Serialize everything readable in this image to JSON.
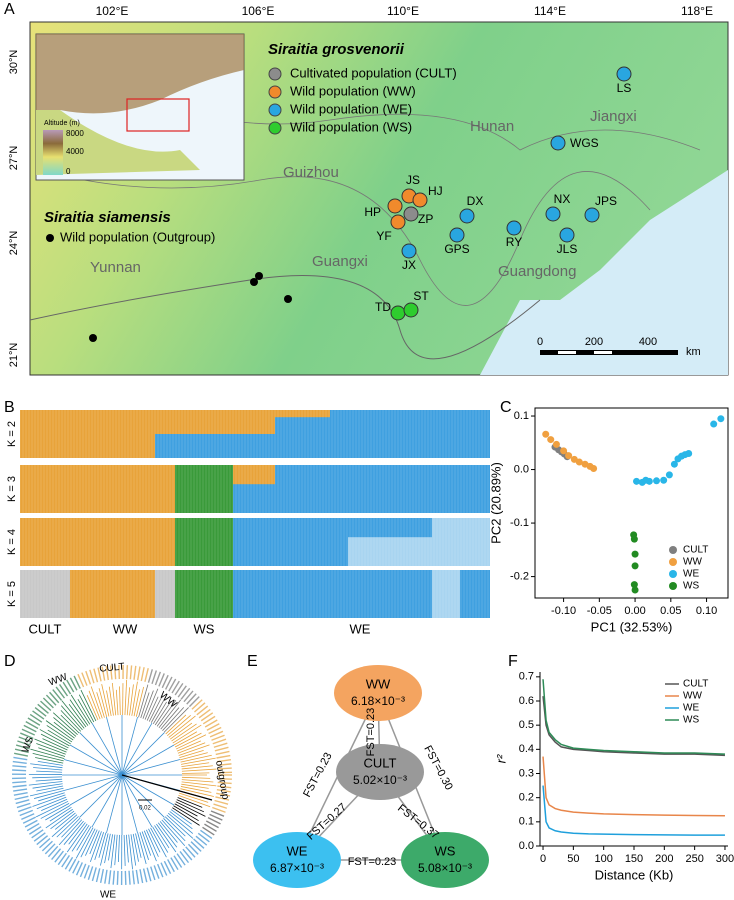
{
  "panels": [
    "A",
    "B",
    "C",
    "D",
    "E",
    "F"
  ],
  "map": {
    "lon_labels": [
      "102°E",
      "106°E",
      "110°E",
      "114°E",
      "118°E"
    ],
    "lat_labels": [
      "30°N",
      "27°N",
      "24°N",
      "21°N"
    ],
    "species": "Siraitia grosvenorii",
    "legend": [
      {
        "label": "Cultivated population (CULT)",
        "color": "#8c8c8c"
      },
      {
        "label": "Wild population (WW)",
        "color": "#f08a2c"
      },
      {
        "label": "Wild population (WE)",
        "color": "#29a6e0"
      },
      {
        "label": "Wild population (WS)",
        "color": "#2ecc2e"
      }
    ],
    "outgroup_species": "Siraitia siamensis",
    "outgroup_legend": "Wild population (Outgroup)",
    "provinces": [
      "Guizhou",
      "Hunan",
      "Jiangxi",
      "Yunnan",
      "Guangxi",
      "Guangdong"
    ],
    "sites": [
      "LS",
      "WGS",
      "JS",
      "HJ",
      "HP",
      "ZP",
      "YF",
      "DX",
      "NX",
      "JPS",
      "RY",
      "GPS",
      "JLS",
      "JX",
      "TD",
      "ST"
    ],
    "scale": [
      0,
      200,
      400
    ],
    "scale_unit": "km",
    "inset": {
      "title": "Altitude (m)",
      "ticks": [
        8000,
        4000,
        0
      ]
    }
  },
  "admixture": {
    "rows": [
      "K = 2",
      "K = 3",
      "K = 4",
      "K = 5"
    ],
    "groups": [
      "CULT",
      "WW",
      "WS",
      "WE"
    ]
  },
  "chart_data": [
    {
      "type": "scatter",
      "xlabel": "PC1 (32.53%)",
      "ylabel": "PC2 (20.89%)",
      "xlim": [
        -0.14,
        0.13
      ],
      "ylim": [
        -0.24,
        0.115
      ],
      "xticks": [
        {
          "value": -0.1,
          "label": "-0.10"
        },
        {
          "value": -0.05,
          "label": "-0.05"
        },
        {
          "value": 0,
          "label": "0.00"
        },
        {
          "value": 0.05,
          "label": "0.05"
        },
        {
          "value": 0.1,
          "label": "0.10"
        }
      ],
      "yticks": [
        0.1,
        {
          "value": 0,
          "label": "0.0"
        },
        -0.1,
        -0.2
      ],
      "legend": "bottom-right",
      "series": [
        {
          "name": "CULT",
          "color": "#7f7f7f",
          "x": [
            -0.112,
            -0.107,
            -0.103,
            -0.099,
            -0.095
          ],
          "y": [
            0.042,
            0.037,
            0.033,
            0.029,
            0.024
          ]
        },
        {
          "name": "WW",
          "color": "#f0a040",
          "x": [
            -0.125,
            -0.118,
            -0.11,
            -0.1,
            -0.093,
            -0.085,
            -0.078,
            -0.07,
            -0.063,
            -0.058
          ],
          "y": [
            0.066,
            0.056,
            0.047,
            0.035,
            0.026,
            0.019,
            0.014,
            0.01,
            0.006,
            0.002
          ]
        },
        {
          "name": "WE",
          "color": "#29b6e8",
          "x": [
            0.002,
            0.01,
            0.015,
            0.02,
            0.03,
            0.04,
            0.048,
            0.055,
            0.06,
            0.065,
            0.07,
            0.075,
            0.11,
            0.12
          ],
          "y": [
            -0.022,
            -0.024,
            -0.02,
            -0.022,
            -0.021,
            -0.02,
            -0.01,
            0.01,
            0.02,
            0.025,
            0.028,
            0.03,
            0.085,
            0.095
          ]
        },
        {
          "name": "WS",
          "color": "#228b22",
          "x": [
            -0.002,
            -0.001,
            0,
            0,
            -0.001,
            0
          ],
          "y": [
            -0.122,
            -0.13,
            -0.158,
            -0.18,
            -0.215,
            -0.225
          ]
        }
      ]
    },
    {
      "type": "line",
      "xlabel": "Distance (Kb)",
      "ylabel": "r²",
      "xlim": [
        -5,
        305
      ],
      "ylim": [
        0,
        0.72
      ],
      "xticks": [
        0,
        50,
        100,
        150,
        200,
        250,
        300
      ],
      "yticks": [
        {
          "value": 0,
          "label": "0.0"
        },
        0.1,
        0.2,
        0.3,
        0.4,
        0.5,
        0.6,
        0.7
      ],
      "legend": "top-right",
      "x": [
        0,
        5,
        10,
        20,
        30,
        50,
        75,
        100,
        150,
        200,
        250,
        300
      ],
      "series": [
        {
          "name": "CULT",
          "color": "#555555",
          "values": [
            0.62,
            0.5,
            0.46,
            0.43,
            0.41,
            0.4,
            0.395,
            0.39,
            0.385,
            0.38,
            0.38,
            0.375
          ]
        },
        {
          "name": "WW",
          "color": "#e8864a",
          "values": [
            0.37,
            0.2,
            0.17,
            0.155,
            0.148,
            0.14,
            0.136,
            0.133,
            0.13,
            0.128,
            0.126,
            0.125
          ]
        },
        {
          "name": "WE",
          "color": "#1fa0dc",
          "values": [
            0.25,
            0.1,
            0.075,
            0.063,
            0.058,
            0.053,
            0.05,
            0.049,
            0.047,
            0.046,
            0.045,
            0.045
          ]
        },
        {
          "name": "WS",
          "color": "#2e8b57",
          "values": [
            0.69,
            0.52,
            0.47,
            0.44,
            0.42,
            0.405,
            0.4,
            0.395,
            0.39,
            0.385,
            0.385,
            0.38
          ]
        }
      ]
    }
  ],
  "tree": {
    "labels": [
      "CULT",
      "WW",
      "WW",
      "WS",
      "WE",
      "outgroup"
    ],
    "scale": "0.02"
  },
  "network": {
    "nodes": [
      {
        "name": "WW",
        "value": "6.18×10⁻³"
      },
      {
        "name": "CULT",
        "value": "5.02×10⁻³"
      },
      {
        "name": "WE",
        "value": "6.87×10⁻³"
      },
      {
        "name": "WS",
        "value": "5.08×10⁻³"
      }
    ],
    "edges": [
      "FST=0.23",
      "FST=0.23",
      "FST=0.30",
      "FST=0.27",
      "FST=0.37",
      "FST=0.23"
    ]
  }
}
